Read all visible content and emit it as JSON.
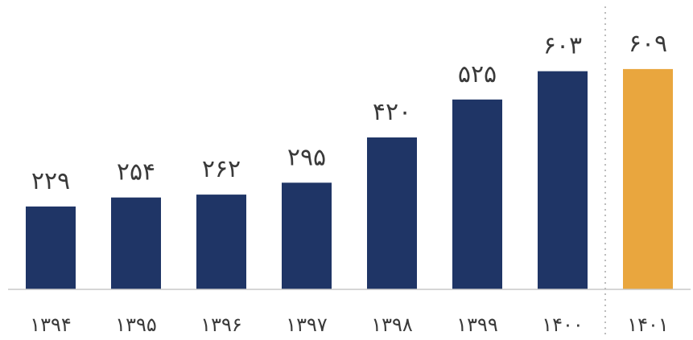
{
  "chart_data": {
    "type": "bar",
    "categories": [
      "۱۳۹۴",
      "۱۳۹۵",
      "۱۳۹۶",
      "۱۳۹۷",
      "۱۳۹۸",
      "۱۳۹۹",
      "۱۴۰۰",
      "۱۴۰۱"
    ],
    "values": [
      229,
      254,
      262,
      295,
      420,
      525,
      603,
      609
    ],
    "value_labels": [
      "۲۲۹",
      "۲۵۴",
      "۲۶۲",
      "۲۹۵",
      "۴۲۰",
      "۵۲۵",
      "۶۰۳",
      "۶۰۹"
    ],
    "title": "",
    "xlabel": "",
    "ylabel": "",
    "ylim": [
      0,
      640
    ],
    "grid": false,
    "highlighted_category": "۱۴۰۱",
    "separator_before_highlight": "dotted",
    "colors": {
      "bar": "#1f3566",
      "highlight": "#e9a63e",
      "axis": "#c9c9c9",
      "separator": "#bdbdbd"
    }
  }
}
